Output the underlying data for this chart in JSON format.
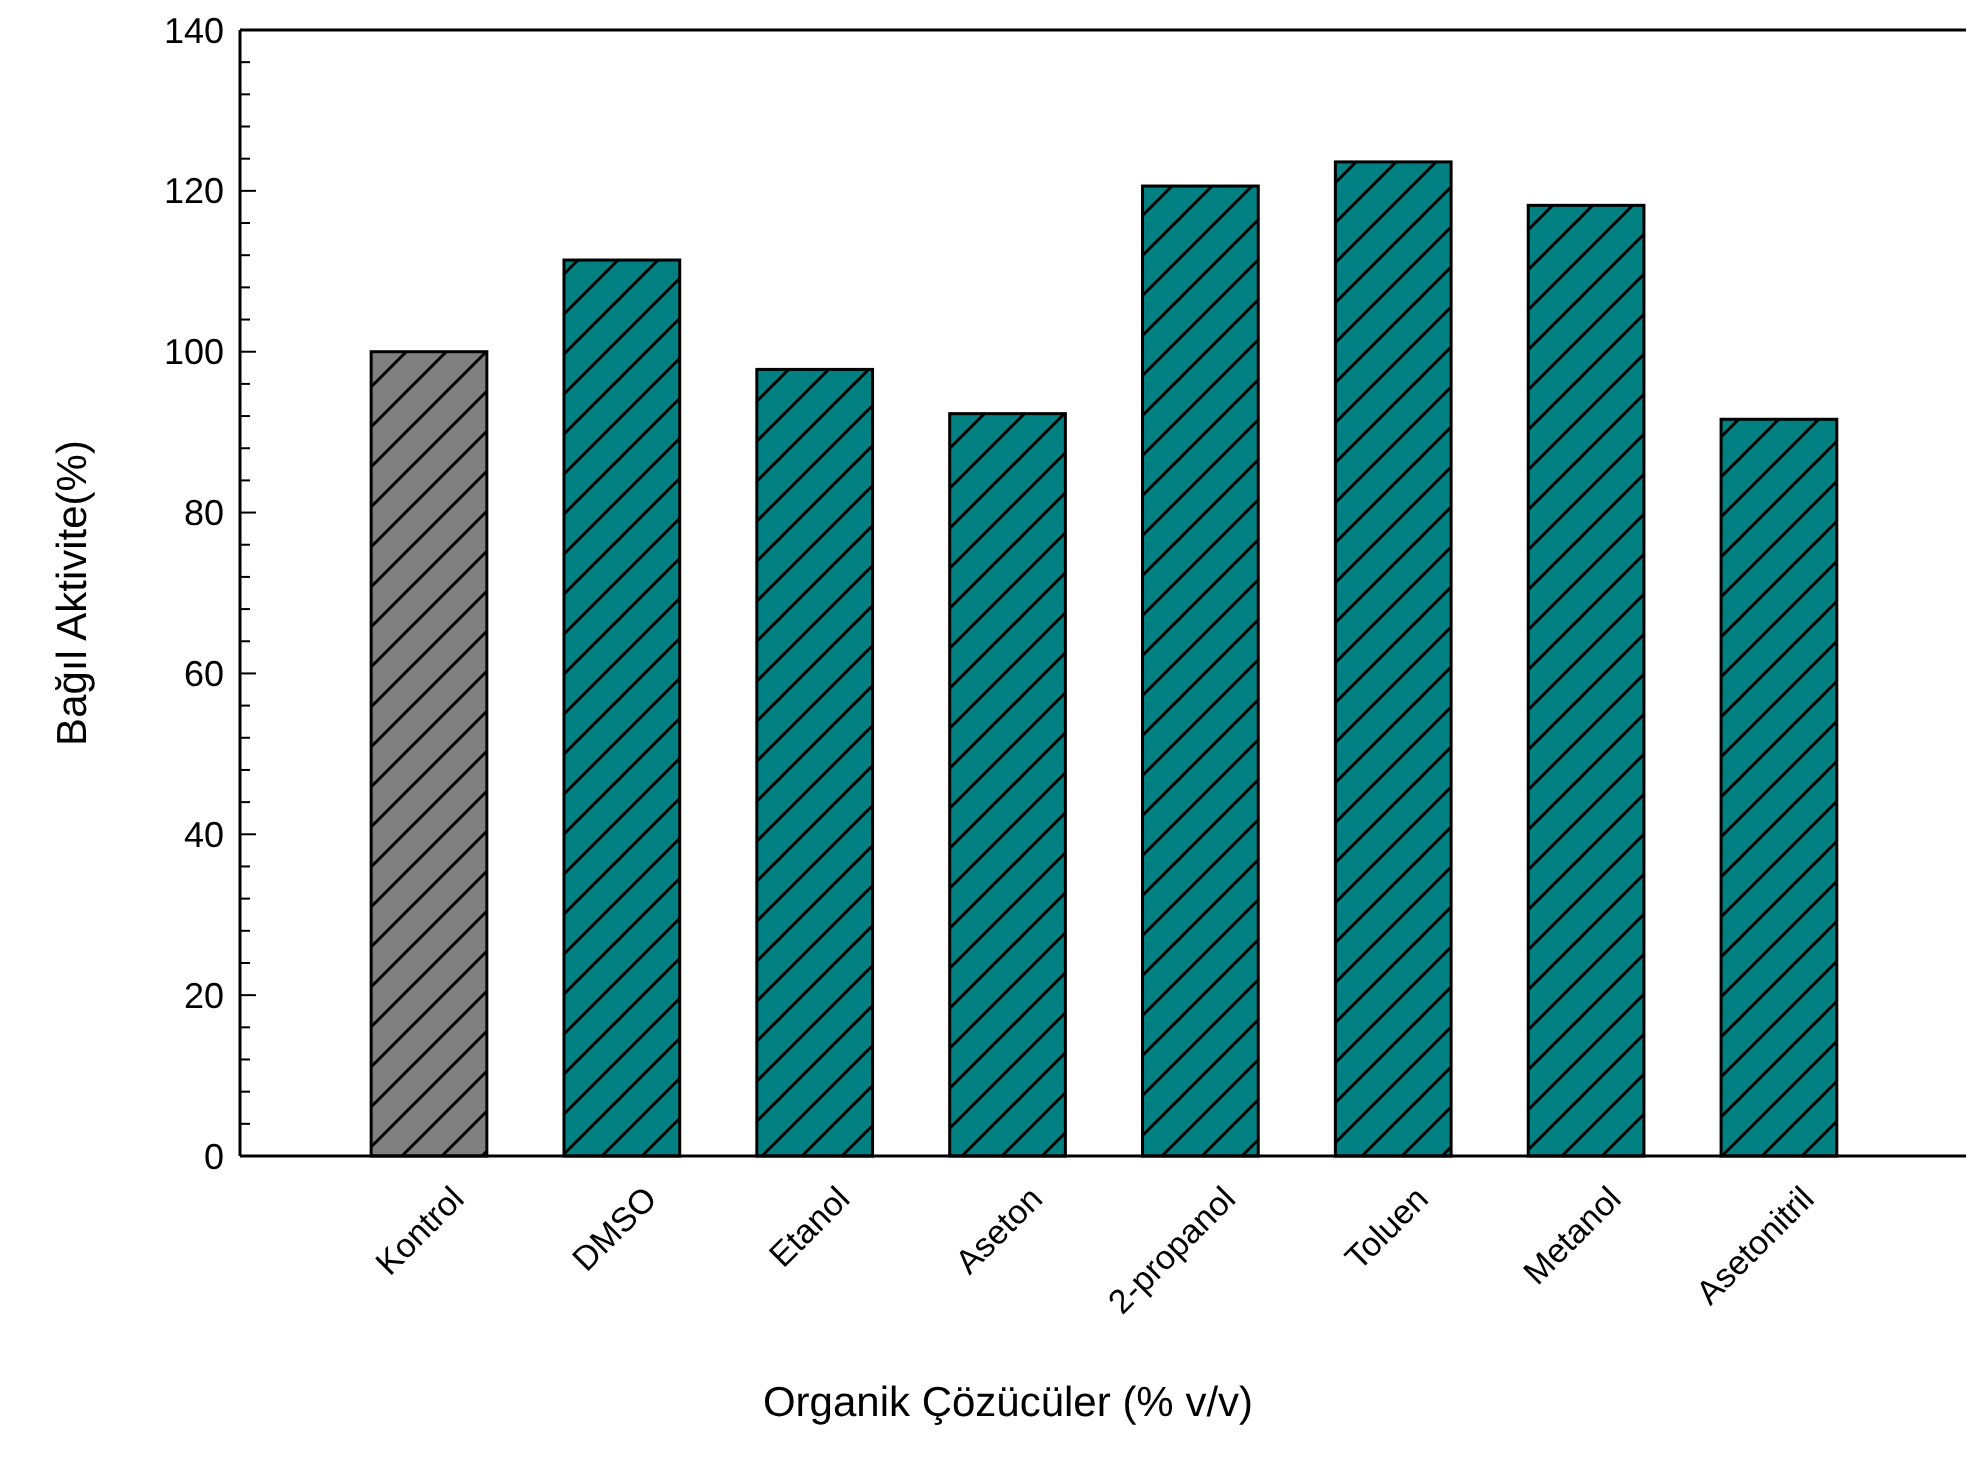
{
  "chart_data": {
    "type": "bar",
    "xlabel": "Organik Çözücüler (% v/v)",
    "ylabel": "Bağıl Aktivite(%)",
    "categories": [
      "Kontrol",
      "DMSO",
      "Etanol",
      "Aseton",
      "2-propanol",
      "Toluen",
      "Metanol",
      "Asetonitril"
    ],
    "values": [
      100,
      111.4,
      97.8,
      92.3,
      120.6,
      123.6,
      118.2,
      91.6
    ],
    "colors": [
      "#808080",
      "#008080",
      "#008080",
      "#008080",
      "#008080",
      "#008080",
      "#008080",
      "#008080"
    ],
    "ylim": [
      0,
      140
    ],
    "yticks": [
      0,
      {
        "value": 4,
        "label": null
      },
      {
        "value": 8,
        "label": null
      },
      {
        "value": 12,
        "label": null
      },
      {
        "value": 16,
        "label": null
      },
      20,
      {
        "value": 24,
        "label": null
      },
      {
        "value": 28,
        "label": null
      },
      {
        "value": 32,
        "label": null
      },
      {
        "value": 36,
        "label": null
      },
      40,
      {
        "value": 44,
        "label": null
      },
      {
        "value": 48,
        "label": null
      },
      {
        "value": 52,
        "label": null
      },
      {
        "value": 56,
        "label": null
      },
      60,
      {
        "value": 64,
        "label": null
      },
      {
        "value": 68,
        "label": null
      },
      {
        "value": 72,
        "label": null
      },
      {
        "value": 76,
        "label": null
      },
      80,
      {
        "value": 84,
        "label": null
      },
      {
        "value": 88,
        "label": null
      },
      {
        "value": 92,
        "label": null
      },
      {
        "value": 96,
        "label": null
      },
      100,
      {
        "value": 104,
        "label": null
      },
      {
        "value": 108,
        "label": null
      },
      {
        "value": 112,
        "label": null
      },
      {
        "value": 116,
        "label": null
      },
      120,
      {
        "value": 124,
        "label": null
      },
      {
        "value": 128,
        "label": null
      },
      {
        "value": 132,
        "label": null
      },
      {
        "value": 136,
        "label": null
      },
      140
    ],
    "grid": false
  }
}
